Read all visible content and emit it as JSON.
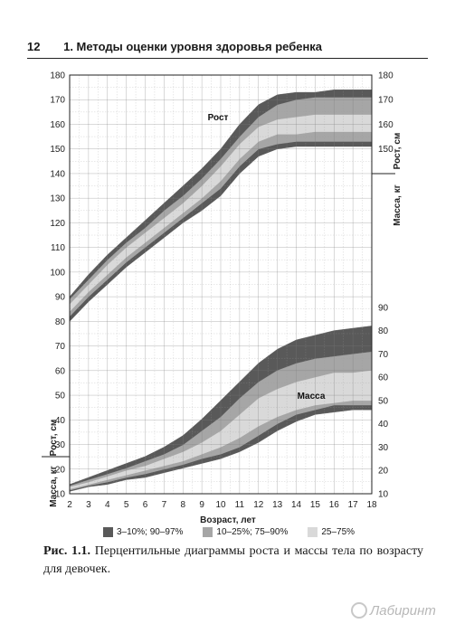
{
  "header": {
    "page_number": "12",
    "title": "1. Методы оценки уровня здоровья ребенка"
  },
  "chart_data": {
    "type": "area",
    "xlabel": "Возраст, лет",
    "x_ticks": [
      2,
      3,
      4,
      5,
      6,
      7,
      8,
      9,
      10,
      11,
      12,
      13,
      14,
      15,
      16,
      17,
      18
    ],
    "xlim": [
      2,
      18
    ],
    "left_axis": {
      "ticks": [
        10,
        20,
        30,
        40,
        50,
        60,
        70,
        80,
        90,
        100,
        110,
        120,
        130,
        140,
        150,
        160,
        170,
        180
      ],
      "labels": [
        "Рост, см",
        "Масса, кг"
      ]
    },
    "right_axis": {
      "height_ticks": [
        150,
        160,
        170,
        180
      ],
      "weight_ticks": [
        10,
        20,
        30,
        40,
        50,
        60,
        70,
        80,
        90
      ],
      "height_label": "Рост, см",
      "weight_label": "Масса, кг"
    },
    "grid": true,
    "legend_position": "bottom",
    "legend": [
      {
        "label": "3–10%; 90–97%",
        "color": "#595959"
      },
      {
        "label": "10–25%; 75–90%",
        "color": "#a6a6a6"
      },
      {
        "label": "25–75%",
        "color": "#d9d9d9"
      }
    ],
    "groups": [
      {
        "name": "Рост",
        "unit": "см",
        "x": [
          2,
          3,
          4,
          5,
          6,
          7,
          8,
          9,
          10,
          11,
          12,
          13,
          14,
          15,
          16,
          17,
          18
        ],
        "percentiles": {
          "p3": [
            80,
            88,
            95,
            102,
            108,
            114,
            120,
            125,
            131,
            140,
            147,
            150,
            151,
            151,
            151,
            151,
            151
          ],
          "p10": [
            82,
            90,
            97,
            104,
            110,
            116,
            122,
            128,
            134,
            143,
            150,
            152,
            153,
            153,
            153,
            153,
            153
          ],
          "p25": [
            84,
            92,
            99,
            106,
            112,
            118,
            124,
            130,
            137,
            146,
            153,
            156,
            156,
            157,
            157,
            157,
            157
          ],
          "p75": [
            87,
            95,
            103,
            110,
            116,
            122,
            128,
            135,
            143,
            152,
            159,
            162,
            163,
            164,
            164,
            164,
            164
          ],
          "p90": [
            89,
            97,
            105,
            112,
            118,
            125,
            131,
            138,
            146,
            155,
            163,
            168,
            170,
            171,
            171,
            171,
            171
          ],
          "p97": [
            90,
            99,
            107,
            114,
            121,
            128,
            135,
            142,
            150,
            160,
            168,
            172,
            173,
            173,
            174,
            174,
            174
          ]
        }
      },
      {
        "name": "Масса",
        "unit": "кг",
        "x": [
          2,
          3,
          4,
          5,
          6,
          7,
          8,
          9,
          10,
          11,
          12,
          13,
          14,
          15,
          16,
          17,
          18
        ],
        "percentiles": {
          "p3": [
            11,
            13,
            14,
            16,
            17,
            19,
            21,
            23,
            25,
            28,
            32,
            37,
            41,
            44,
            45,
            46,
            46
          ],
          "p10": [
            11.5,
            13.5,
            15,
            17,
            18.5,
            20.5,
            22.5,
            25,
            27,
            30,
            35,
            40,
            44,
            46,
            48,
            48,
            48
          ],
          "p25": [
            12,
            14,
            16,
            18,
            20,
            22,
            24,
            27,
            30,
            34,
            39,
            43,
            46,
            48,
            49,
            50,
            50
          ],
          "p75": [
            13,
            15,
            17.5,
            20,
            22,
            25,
            28,
            32,
            37,
            44,
            51,
            55,
            58,
            60,
            62,
            62,
            63
          ],
          "p90": [
            13.5,
            16,
            18.5,
            21,
            24,
            27,
            31,
            37,
            43,
            51,
            58,
            63,
            66,
            68,
            69,
            70,
            71
          ],
          "p97": [
            14,
            17,
            20,
            23,
            26,
            30,
            35,
            42,
            50,
            58,
            66,
            72,
            76,
            78,
            80,
            81,
            82
          ]
        }
      }
    ]
  },
  "caption": {
    "label": "Рис. 1.1.",
    "text": "Перцентильные диаграммы роста и массы тела по возрасту для девочек."
  },
  "watermark": {
    "text": "Лабиринт"
  }
}
